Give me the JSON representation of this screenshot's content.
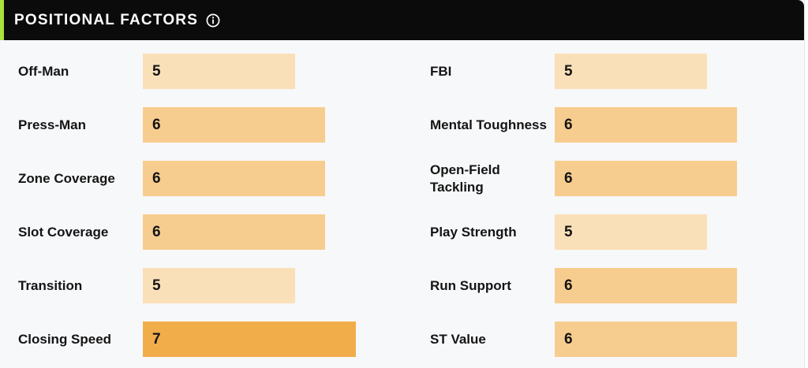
{
  "section": {
    "title": "POSITIONAL FACTORS",
    "info_icon": "info-circle-icon"
  },
  "colors": {
    "header_bg": "#0b0b0b",
    "accent": "#a9e23b",
    "score_5": "#fae0b8",
    "score_6": "#f7cd8f",
    "score_7": "#f2ad4b"
  },
  "scale_max": 10,
  "left": [
    {
      "label": "Off-Man",
      "value": 5
    },
    {
      "label": "Press-Man",
      "value": 6
    },
    {
      "label": "Zone Coverage",
      "value": 6
    },
    {
      "label": "Slot Coverage",
      "value": 6
    },
    {
      "label": "Transition",
      "value": 5
    },
    {
      "label": "Closing Speed",
      "value": 7
    }
  ],
  "right": [
    {
      "label": "FBI",
      "value": 5
    },
    {
      "label": "Mental Toughness",
      "value": 6
    },
    {
      "label": "Open-Field Tackling",
      "value": 6
    },
    {
      "label": "Play Strength",
      "value": 5
    },
    {
      "label": "Run Support",
      "value": 6
    },
    {
      "label": "ST Value",
      "value": 6
    }
  ]
}
